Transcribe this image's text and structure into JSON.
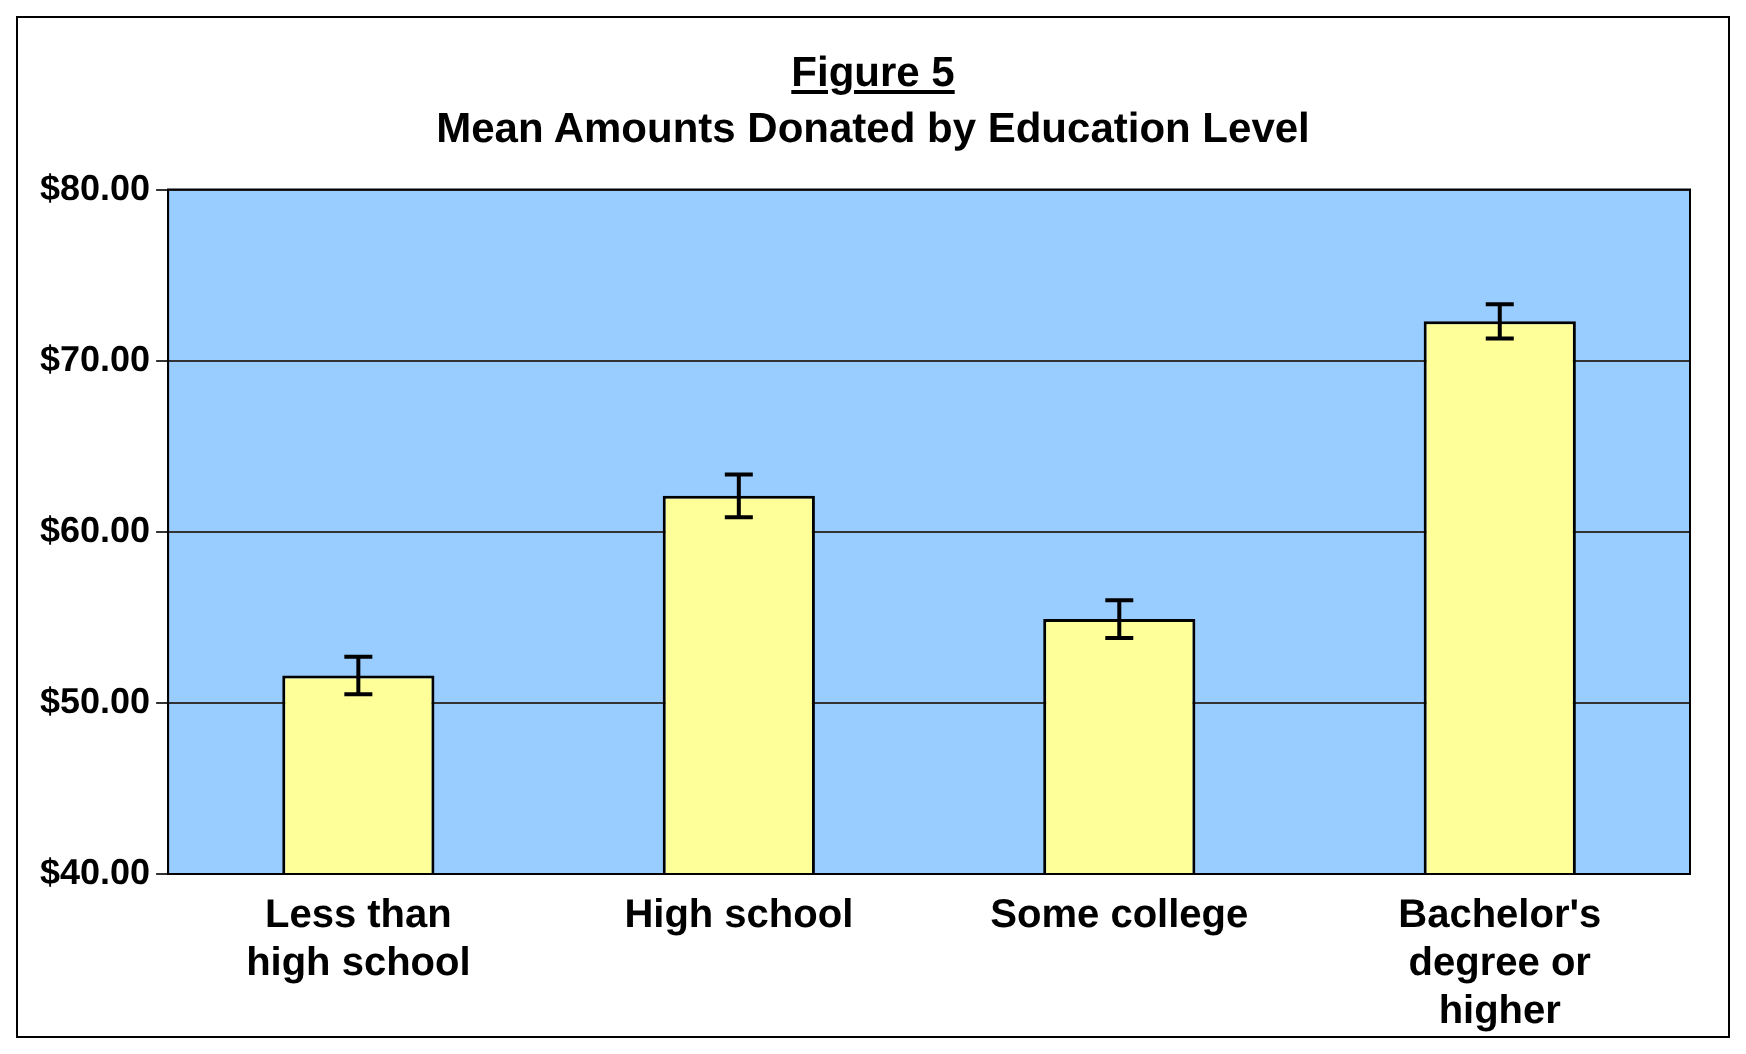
{
  "chart_data": {
    "type": "bar",
    "title": "Figure 5",
    "subtitle": "Mean Amounts Donated by Education Level",
    "categories": [
      "Less than high school",
      "High school",
      "Some college",
      "Bachelor's degree or higher"
    ],
    "values": [
      51.6,
      62.1,
      54.9,
      72.3
    ],
    "errors": [
      1.1,
      1.25,
      1.1,
      1.0
    ],
    "color": "#ffff99",
    "ylim": [
      40,
      80
    ],
    "yticks": [
      {
        "value": 40,
        "label": "$40.00"
      },
      {
        "value": 50,
        "label": "$50.00"
      },
      {
        "value": 60,
        "label": "$60.00"
      },
      {
        "value": 70,
        "label": "$70.00"
      },
      {
        "value": 80,
        "label": "$80.00"
      }
    ],
    "grid": "y",
    "legend": false
  }
}
